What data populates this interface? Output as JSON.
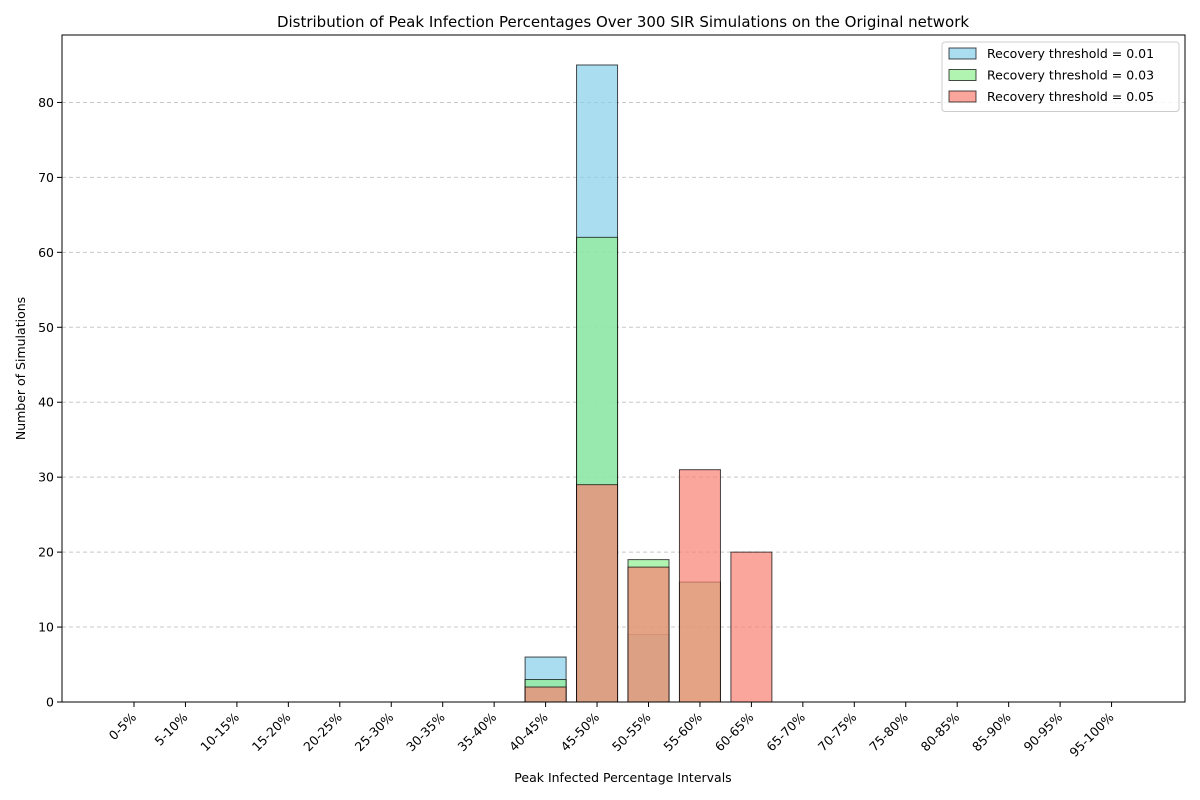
{
  "chart_data": {
    "type": "bar",
    "title": "Distribution of Peak Infection Percentages Over 300 SIR Simulations on the Original network",
    "xlabel": "Peak Infected Percentage Intervals",
    "ylabel": "Number of Simulations",
    "ylim": [
      0,
      89
    ],
    "yticks": [
      0,
      10,
      20,
      30,
      40,
      50,
      60,
      70,
      80
    ],
    "grid": "y-dashed",
    "legend_position": "top-right",
    "categories": [
      "0-5%",
      "5-10%",
      "10-15%",
      "15-20%",
      "20-25%",
      "25-30%",
      "30-35%",
      "35-40%",
      "40-45%",
      "45-50%",
      "50-55%",
      "55-60%",
      "60-65%",
      "65-70%",
      "70-75%",
      "75-80%",
      "80-85%",
      "85-90%",
      "90-95%",
      "95-100%"
    ],
    "series": [
      {
        "name": "Recovery threshold = 0.01",
        "color": "#87CEEB",
        "values": [
          0,
          0,
          0,
          0,
          0,
          0,
          0,
          0,
          6,
          85,
          9,
          0,
          0,
          0,
          0,
          0,
          0,
          0,
          0,
          0
        ]
      },
      {
        "name": "Recovery threshold = 0.03",
        "color": "#90EE90",
        "values": [
          0,
          0,
          0,
          0,
          0,
          0,
          0,
          0,
          3,
          62,
          19,
          16,
          0,
          0,
          0,
          0,
          0,
          0,
          0,
          0
        ]
      },
      {
        "name": "Recovery threshold = 0.05",
        "color": "#FA8072",
        "values": [
          0,
          0,
          0,
          0,
          0,
          0,
          0,
          0,
          2,
          29,
          18,
          31,
          20,
          0,
          0,
          0,
          0,
          0,
          0,
          0
        ]
      }
    ]
  }
}
